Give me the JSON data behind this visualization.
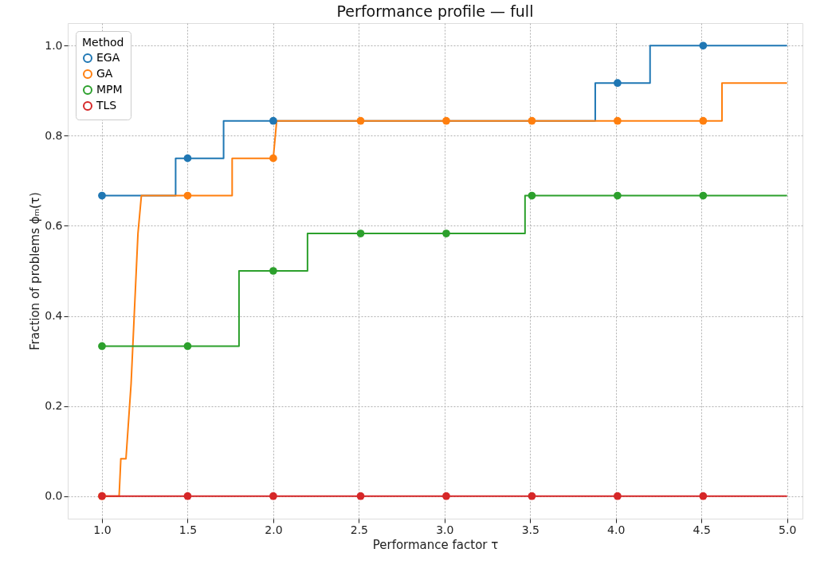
{
  "chart_data": {
    "type": "line",
    "title": "Performance profile — full",
    "xlabel": "Performance factor τ",
    "ylabel": "Fraction of problems ϕₘ(τ)",
    "legend_title": "Method",
    "legend": "top left",
    "grid": true,
    "line_style": "solid",
    "xlim": [
      0.8,
      5.09
    ],
    "ylim": [
      -0.05,
      1.05
    ],
    "xticks": [
      {
        "value": 1,
        "label": "1.0"
      },
      {
        "value": 1.5,
        "label": "1.5"
      },
      {
        "value": 2,
        "label": "2.0"
      },
      {
        "value": 2.5,
        "label": "2.5"
      },
      {
        "value": 3,
        "label": "3.0"
      },
      {
        "value": 3.5,
        "label": "3.5"
      },
      {
        "value": 4,
        "label": "4.0"
      },
      {
        "value": 4.5,
        "label": "4.5"
      },
      {
        "value": 5,
        "label": "5.0"
      }
    ],
    "yticks": [
      {
        "value": 0,
        "label": "0.0"
      },
      {
        "value": 0.2,
        "label": "0.2"
      },
      {
        "value": 0.4,
        "label": "0.4"
      },
      {
        "value": 0.6,
        "label": "0.6"
      },
      {
        "value": 0.8,
        "label": "0.8"
      },
      {
        "value": 1,
        "label": "1.0"
      }
    ],
    "series": [
      {
        "name": "EGA",
        "marker": "none",
        "color": "#1f77b4",
        "x": [
          1.0,
          1.43,
          1.43,
          1.71,
          1.71,
          3.88,
          3.88,
          4.2,
          4.2,
          5.0
        ],
        "values": [
          0.667,
          0.667,
          0.75,
          0.75,
          0.833,
          0.833,
          0.917,
          0.917,
          1.0,
          1.0
        ]
      },
      {
        "name": "GA",
        "marker": "none",
        "color": "#ff7f0e",
        "x": [
          1.0,
          1.1,
          1.11,
          1.14,
          1.17,
          1.21,
          1.23,
          1.76,
          1.76,
          2.0,
          2.02,
          4.62,
          4.62,
          5.0
        ],
        "values": [
          0.0,
          0.0,
          0.083,
          0.083,
          0.25,
          0.583,
          0.667,
          0.667,
          0.75,
          0.75,
          0.833,
          0.833,
          0.917,
          0.917
        ]
      },
      {
        "name": "MPM",
        "marker": "none",
        "color": "#2ca02c",
        "x": [
          1.0,
          1.8,
          1.8,
          2.2,
          2.2,
          3.47,
          3.47,
          5.0
        ],
        "values": [
          0.333,
          0.333,
          0.5,
          0.5,
          0.583,
          0.583,
          0.667,
          0.667
        ]
      },
      {
        "name": "TLS",
        "marker": "none",
        "color": "#d62728",
        "x": [
          1.0,
          5.0
        ],
        "values": [
          0.0,
          0.0
        ]
      },
      {
        "type": "scatter",
        "marker": "circle",
        "color": "#1f77b4",
        "x": [
          1.0,
          1.5,
          2.0,
          2.51,
          3.01,
          3.51,
          4.01,
          4.51
        ],
        "values": [
          0.667,
          0.75,
          0.833,
          null,
          null,
          null,
          0.917,
          1.0
        ]
      },
      {
        "type": "scatter",
        "marker": "circle",
        "color": "#ff7f0e",
        "x": [
          1.0,
          1.5,
          2.0,
          2.51,
          3.01,
          3.51,
          4.01,
          4.51
        ],
        "values": [
          0.0,
          0.667,
          0.75,
          0.833,
          0.833,
          0.833,
          0.833,
          0.833
        ]
      },
      {
        "type": "scatter",
        "marker": "circle",
        "color": "#2ca02c",
        "x": [
          1.0,
          1.5,
          2.0,
          2.51,
          3.01,
          3.51,
          4.01,
          4.51
        ],
        "values": [
          0.333,
          0.333,
          0.5,
          0.583,
          0.583,
          0.667,
          0.667,
          0.667
        ]
      },
      {
        "type": "scatter",
        "marker": "circle",
        "color": "#d62728",
        "x": [
          1.0,
          1.5,
          2.0,
          2.51,
          3.01,
          3.51,
          4.01,
          4.51
        ],
        "values": [
          0.0,
          0.0,
          0.0,
          0.0,
          0.0,
          0.0,
          0.0,
          0.0
        ]
      }
    ]
  }
}
